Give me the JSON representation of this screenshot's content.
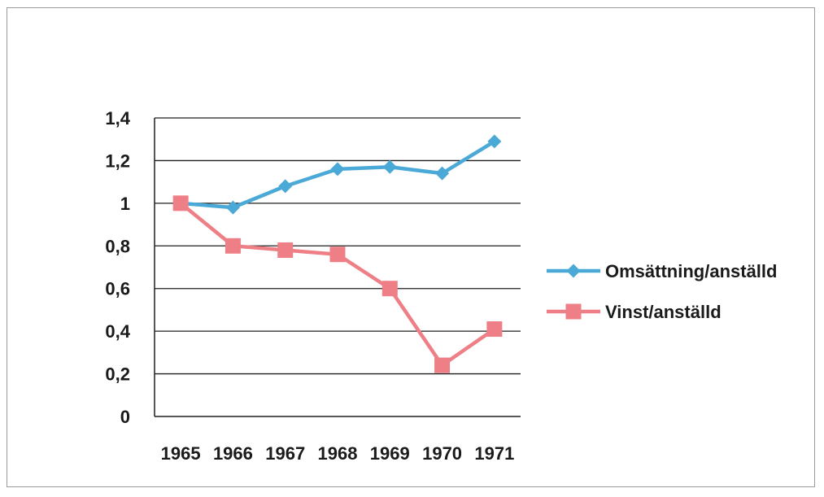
{
  "chart_data": {
    "type": "line",
    "title": "",
    "xlabel": "",
    "ylabel": "",
    "categories": [
      "1965",
      "1966",
      "1967",
      "1968",
      "1969",
      "1970",
      "1971"
    ],
    "ylim": [
      0,
      1.4
    ],
    "yticks": [
      "0",
      "0,2",
      "0,4",
      "0,6",
      "0,8",
      "1",
      "1,2",
      "1,4"
    ],
    "ytick_values": [
      0,
      0.2,
      0.4,
      0.6,
      0.8,
      1.0,
      1.2,
      1.4
    ],
    "grid": "horizontal",
    "legend_position": "right",
    "series": [
      {
        "name": "Omsättning/anställd",
        "marker": "diamond",
        "color": "#4aa9d6",
        "values": [
          1.0,
          0.98,
          1.08,
          1.16,
          1.17,
          1.14,
          1.29
        ]
      },
      {
        "name": "Vinst/anställd",
        "marker": "square",
        "color": "#ee7f86",
        "values": [
          1.0,
          0.8,
          0.78,
          0.76,
          0.6,
          0.24,
          0.41
        ]
      }
    ]
  }
}
